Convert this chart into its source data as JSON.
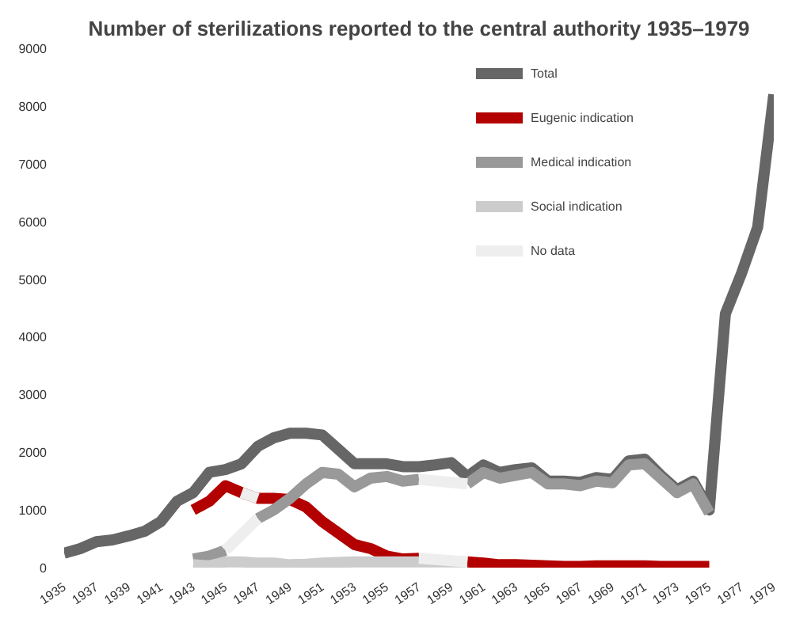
{
  "chart_data": {
    "type": "line",
    "title": "Number of sterilizations reported to the central authority 1935–1979",
    "xlim": [
      1935,
      1979
    ],
    "xticks": [
      1935,
      1937,
      1939,
      1941,
      1943,
      1945,
      1947,
      1949,
      1951,
      1953,
      1955,
      1957,
      1959,
      1961,
      1963,
      1965,
      1967,
      1969,
      1971,
      1973,
      1975,
      1977,
      1979
    ],
    "ylim": [
      0,
      9000
    ],
    "yticks": [
      0,
      1000,
      2000,
      3000,
      4000,
      5000,
      6000,
      7000,
      8000,
      9000
    ],
    "grid": false,
    "legend": "top",
    "marker": "none",
    "line_style": "solid",
    "series": [
      {
        "name": "Total",
        "color": "#666666",
        "x": [
          1935,
          1936,
          1937,
          1938,
          1939,
          1940,
          1941,
          1942,
          1943,
          1944,
          1945,
          1946,
          1947,
          1948,
          1949,
          1950,
          1951,
          1952,
          1953,
          1954,
          1955,
          1956,
          1957,
          1958,
          1959,
          1960,
          1961,
          1962,
          1963,
          1964,
          1965,
          1966,
          1967,
          1968,
          1969,
          1970,
          1971,
          1972,
          1973,
          1974,
          1975,
          1976,
          1977,
          1978,
          1979
        ],
        "values": [
          250,
          330,
          450,
          480,
          550,
          630,
          800,
          1150,
          1300,
          1650,
          1700,
          1800,
          2100,
          2250,
          2330,
          2330,
          2300,
          2050,
          1800,
          1800,
          1800,
          1750,
          1750,
          1780,
          1820,
          1580,
          1780,
          1650,
          1700,
          1730,
          1500,
          1500,
          1480,
          1560,
          1530,
          1850,
          1880,
          1600,
          1350,
          1500,
          1000,
          4400,
          5100,
          5900,
          8200
        ]
      },
      {
        "name": "Eugenic indication",
        "color": "#b30000",
        "x": [
          1943,
          1944,
          1945,
          1946,
          1947,
          1948,
          1949,
          1950,
          1951,
          1952,
          1953,
          1954,
          1955,
          1956,
          1957,
          1958,
          1959,
          1960,
          1961,
          1962,
          1963,
          1964,
          1965,
          1966,
          1967,
          1968,
          1969,
          1970,
          1971,
          1972,
          1973,
          1974,
          1975
        ],
        "values": [
          1000,
          1150,
          1420,
          1300,
          1200,
          1200,
          1180,
          1050,
          800,
          600,
          400,
          330,
          200,
          150,
          160,
          null,
          null,
          100,
          80,
          50,
          50,
          40,
          30,
          20,
          20,
          30,
          30,
          30,
          30,
          20,
          20,
          20,
          20
        ]
      },
      {
        "name": "Medical indication",
        "color": "#999999",
        "x": [
          1943,
          1944,
          1945,
          1946,
          1947,
          1948,
          1949,
          1950,
          1951,
          1952,
          1953,
          1954,
          1955,
          1956,
          1957,
          1958,
          1959,
          1960,
          1961,
          1962,
          1963,
          1964,
          1965,
          1966,
          1967,
          1968,
          1969,
          1970,
          1971,
          1972,
          1973,
          1974,
          1975
        ],
        "values": [
          150,
          200,
          300,
          null,
          850,
          1000,
          1200,
          1450,
          1650,
          1620,
          1400,
          1550,
          1580,
          1500,
          1530,
          null,
          null,
          1450,
          1650,
          1550,
          1600,
          1650,
          1450,
          1450,
          1420,
          1500,
          1470,
          1780,
          1800,
          1550,
          1300,
          1450,
          950
        ]
      },
      {
        "name": "Social indication",
        "color": "#cccccc",
        "x": [
          1943,
          1944,
          1945,
          1946,
          1947,
          1948,
          1949,
          1950,
          1951,
          1952,
          1953,
          1954,
          1955,
          1956,
          1957,
          1958,
          1959,
          1960
        ],
        "values": [
          50,
          30,
          100,
          100,
          80,
          80,
          50,
          60,
          80,
          90,
          100,
          100,
          100,
          100,
          100,
          100,
          100,
          100
        ]
      },
      {
        "name": "No data",
        "color": "#eeeeee",
        "x": [
          1946,
          1947
        ],
        "values": [
          1300,
          1200
        ]
      },
      {
        "color": "#eeeeee",
        "x": [
          1945,
          1947
        ],
        "values": [
          300,
          850
        ]
      },
      {
        "color": "#eeeeee",
        "x": [
          1957,
          1960
        ],
        "values": [
          1530,
          1450
        ]
      },
      {
        "color": "#eeeeee",
        "x": [
          1957,
          1960
        ],
        "values": [
          160,
          100
        ]
      }
    ]
  }
}
